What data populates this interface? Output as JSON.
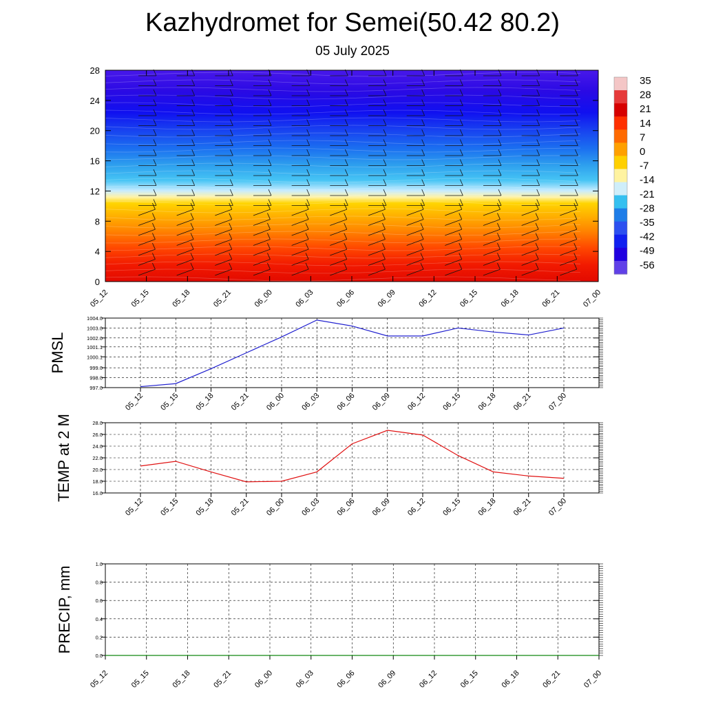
{
  "title": "Kazhydromet for Semei(50.42 80.2)",
  "date": "05 July 2025",
  "chart_data": [
    {
      "type": "heatmap",
      "name": "cross-section",
      "x": [
        "05_12",
        "05_15",
        "05_18",
        "05_21",
        "06_00",
        "06_03",
        "06_06",
        "06_09",
        "06_12",
        "06_15",
        "06_18",
        "06_21",
        "07_00"
      ],
      "yticks": [
        "0",
        "4",
        "8",
        "12",
        "16",
        "20",
        "24",
        "28"
      ],
      "ylim": [
        0,
        28
      ],
      "colorbar_labels": [
        "35",
        "28",
        "21",
        "14",
        "7",
        "0",
        "-7",
        "-14",
        "-21",
        "-28",
        "-35",
        "-42",
        "-49",
        "-56"
      ],
      "colormap": [
        "#f4c6c6",
        "#e63a3a",
        "#d60000",
        "#ff3000",
        "#ff6a00",
        "#ffa000",
        "#ffd000",
        "#fff3a0",
        "#cfeefa",
        "#35c0f0",
        "#1e7de8",
        "#2c50f0",
        "#1020f0",
        "#2000e0",
        "#6040e8"
      ]
    },
    {
      "type": "line",
      "name": "pmsl",
      "ylabel": "PMSL",
      "x": [
        "05_12",
        "05_15",
        "05_18",
        "05_21",
        "06_00",
        "06_03",
        "06_06",
        "06_09",
        "06_12",
        "06_15",
        "06_18",
        "06_21",
        "07_00"
      ],
      "values": [
        997.1,
        997.4,
        998.9,
        1000.5,
        1002.1,
        1003.8,
        1003.2,
        1002.2,
        1002.2,
        1003.0,
        1002.6,
        1002.3,
        1003.0
      ],
      "yticks": [
        "997.0",
        "998.0",
        "999.0",
        "1000.1",
        "1001.1",
        "1002.0",
        "1003.0",
        "1004.0"
      ],
      "ylim": [
        997.0,
        1004.0
      ],
      "color": "#1f1fcf"
    },
    {
      "type": "line",
      "name": "temp-2m",
      "ylabel": "TEMP at 2 M",
      "x": [
        "05_12",
        "05_15",
        "05_18",
        "05_21",
        "06_00",
        "06_03",
        "06_06",
        "06_09",
        "06_12",
        "06_15",
        "06_18",
        "06_21",
        "07_00"
      ],
      "values": [
        20.6,
        21.4,
        19.6,
        17.9,
        18.0,
        19.6,
        24.4,
        26.7,
        25.9,
        22.4,
        19.6,
        18.9,
        18.5
      ],
      "yticks": [
        "16.0",
        "18.0",
        "20.0",
        "22.0",
        "24.0",
        "26.0",
        "28.0"
      ],
      "ylim": [
        16.0,
        28.0
      ],
      "color": "#e01010"
    },
    {
      "type": "line",
      "name": "precip",
      "ylabel": "PRECIP, mm",
      "x": [
        "05_12",
        "05_15",
        "05_18",
        "05_21",
        "06_00",
        "06_03",
        "06_06",
        "06_09",
        "06_12",
        "06_15",
        "06_18",
        "06_21",
        "07_00"
      ],
      "values": [
        0,
        0,
        0,
        0,
        0,
        0,
        0,
        0,
        0,
        0,
        0,
        0,
        0
      ],
      "yticks": [
        "0.0",
        "0.2",
        "0.4",
        "0.6",
        "0.8",
        "1.0"
      ],
      "ylim": [
        0.0,
        1.0
      ],
      "color": "#118811"
    }
  ]
}
